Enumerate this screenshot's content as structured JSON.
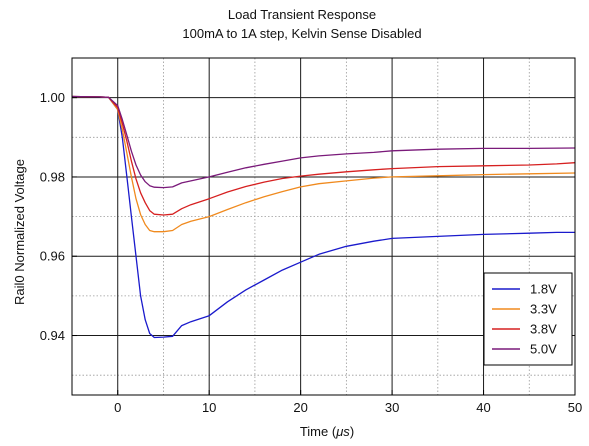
{
  "chart_data": {
    "type": "line",
    "title": "Load Transient Response",
    "subtitle": "100mA to 1A step, Kelvin Sense Disabled",
    "xlabel_prefix": "Time (",
    "xlabel_unit": "μs",
    "xlabel_suffix": ")",
    "ylabel": "Rail0 Normalized Voltage",
    "xlim": [
      -5,
      50
    ],
    "ylim": [
      0.925,
      1.01
    ],
    "x_ticks": [
      0,
      10,
      20,
      30,
      40,
      50
    ],
    "x_tick_labels": [
      "0",
      "10",
      "20",
      "30",
      "40",
      "50"
    ],
    "y_ticks": [
      0.94,
      0.96,
      0.98,
      1.0
    ],
    "y_tick_labels": [
      "0.94",
      "0.96",
      "0.98",
      "1.00"
    ],
    "x_major_grid": [
      0,
      10,
      20,
      30,
      40
    ],
    "x_minor_grid": [
      5,
      15,
      25,
      35,
      45
    ],
    "y_major_grid": [
      0.94,
      0.96,
      0.98,
      1.0
    ],
    "y_minor_grid": [
      0.93,
      0.95,
      0.97,
      0.99
    ],
    "grid": true,
    "legend_position": "bottom-right",
    "series": [
      {
        "name": "1.8V",
        "color": "#1a1acc",
        "points": [
          [
            -5,
            1.0003
          ],
          [
            -2,
            1.0002
          ],
          [
            -1,
            1.0001
          ],
          [
            0,
            0.997
          ],
          [
            0.5,
            0.99
          ],
          [
            1,
            0.98
          ],
          [
            1.5,
            0.97
          ],
          [
            2,
            0.96
          ],
          [
            2.5,
            0.95
          ],
          [
            3,
            0.944
          ],
          [
            3.5,
            0.9405
          ],
          [
            4,
            0.9395
          ],
          [
            5,
            0.9396
          ],
          [
            6,
            0.9398
          ],
          [
            7,
            0.9425
          ],
          [
            8,
            0.9435
          ],
          [
            10,
            0.945
          ],
          [
            12,
            0.9485
          ],
          [
            14,
            0.9515
          ],
          [
            16,
            0.954
          ],
          [
            18,
            0.9565
          ],
          [
            20,
            0.9585
          ],
          [
            22,
            0.9605
          ],
          [
            25,
            0.9625
          ],
          [
            28,
            0.9638
          ],
          [
            30,
            0.9645
          ],
          [
            35,
            0.965
          ],
          [
            40,
            0.9655
          ],
          [
            45,
            0.9658
          ],
          [
            48,
            0.966
          ],
          [
            50,
            0.966
          ]
        ]
      },
      {
        "name": "3.3V",
        "color": "#f08a1e",
        "points": [
          [
            -5,
            1.0003
          ],
          [
            -2,
            1.0002
          ],
          [
            -1,
            1.0001
          ],
          [
            0,
            0.997
          ],
          [
            0.5,
            0.992
          ],
          [
            1,
            0.986
          ],
          [
            1.5,
            0.98
          ],
          [
            2,
            0.9745
          ],
          [
            2.5,
            0.9705
          ],
          [
            3,
            0.968
          ],
          [
            3.5,
            0.9665
          ],
          [
            4,
            0.9662
          ],
          [
            5,
            0.9662
          ],
          [
            6,
            0.9665
          ],
          [
            7,
            0.968
          ],
          [
            8,
            0.9688
          ],
          [
            10,
            0.97
          ],
          [
            12,
            0.9718
          ],
          [
            14,
            0.9735
          ],
          [
            16,
            0.975
          ],
          [
            18,
            0.9763
          ],
          [
            20,
            0.9775
          ],
          [
            22,
            0.9783
          ],
          [
            25,
            0.979
          ],
          [
            28,
            0.9797
          ],
          [
            30,
            0.98
          ],
          [
            35,
            0.9803
          ],
          [
            40,
            0.9806
          ],
          [
            45,
            0.9808
          ],
          [
            50,
            0.981
          ]
        ]
      },
      {
        "name": "3.8V",
        "color": "#d62020",
        "points": [
          [
            -5,
            1.0003
          ],
          [
            -2,
            1.0002
          ],
          [
            -1,
            1.0001
          ],
          [
            0,
            0.9975
          ],
          [
            0.5,
            0.9935
          ],
          [
            1,
            0.989
          ],
          [
            1.5,
            0.984
          ],
          [
            2,
            0.9795
          ],
          [
            2.5,
            0.976
          ],
          [
            3,
            0.9735
          ],
          [
            3.5,
            0.9715
          ],
          [
            4,
            0.9706
          ],
          [
            5,
            0.9704
          ],
          [
            6,
            0.9706
          ],
          [
            7,
            0.972
          ],
          [
            8,
            0.973
          ],
          [
            10,
            0.9745
          ],
          [
            12,
            0.9762
          ],
          [
            14,
            0.9776
          ],
          [
            16,
            0.9787
          ],
          [
            18,
            0.9796
          ],
          [
            20,
            0.9802
          ],
          [
            22,
            0.9807
          ],
          [
            25,
            0.9813
          ],
          [
            28,
            0.9818
          ],
          [
            30,
            0.9821
          ],
          [
            35,
            0.9826
          ],
          [
            40,
            0.9828
          ],
          [
            45,
            0.983
          ],
          [
            48,
            0.9833
          ],
          [
            50,
            0.9836
          ]
        ]
      },
      {
        "name": "5.0V",
        "color": "#7a1a7a",
        "points": [
          [
            -5,
            1.0003
          ],
          [
            -2,
            1.0002
          ],
          [
            -1,
            1.0001
          ],
          [
            0,
            0.998
          ],
          [
            0.5,
            0.9945
          ],
          [
            1,
            0.9905
          ],
          [
            1.5,
            0.9865
          ],
          [
            2,
            0.983
          ],
          [
            2.5,
            0.9805
          ],
          [
            3,
            0.9788
          ],
          [
            3.5,
            0.9778
          ],
          [
            4,
            0.9774
          ],
          [
            5,
            0.9773
          ],
          [
            6,
            0.9775
          ],
          [
            7,
            0.9785
          ],
          [
            8,
            0.979
          ],
          [
            10,
            0.98
          ],
          [
            12,
            0.9812
          ],
          [
            14,
            0.9823
          ],
          [
            16,
            0.9832
          ],
          [
            18,
            0.984
          ],
          [
            20,
            0.9848
          ],
          [
            22,
            0.9853
          ],
          [
            25,
            0.9858
          ],
          [
            28,
            0.9862
          ],
          [
            30,
            0.9866
          ],
          [
            35,
            0.987
          ],
          [
            40,
            0.9872
          ],
          [
            45,
            0.9872
          ],
          [
            50,
            0.9873
          ]
        ]
      }
    ]
  }
}
